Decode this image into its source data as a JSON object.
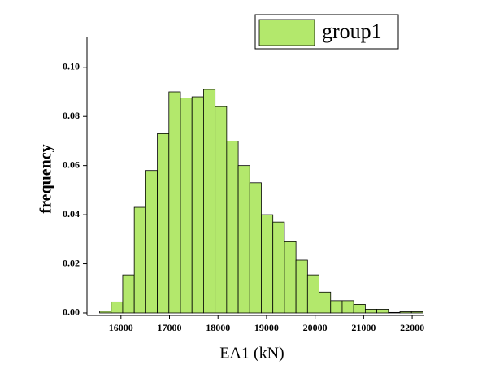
{
  "chart_data": {
    "type": "histogram",
    "x_label": "EA1 (kN)",
    "y_label": "frequency",
    "bins": [
      15560,
      15798,
      16036,
      16274,
      16512,
      16750,
      16988,
      17226,
      17464,
      17702,
      17940,
      18178,
      18416,
      18654,
      18892,
      19130,
      19368,
      19606,
      19844,
      20082,
      20320,
      20558,
      20796,
      21034,
      21272,
      21510,
      21748,
      21986,
      22224
    ],
    "series": [
      {
        "name": "group1",
        "color": "#b3e86c",
        "values": [
          0.0007,
          0.0045,
          0.0155,
          0.043,
          0.058,
          0.073,
          0.09,
          0.0875,
          0.088,
          0.091,
          0.084,
          0.07,
          0.06,
          0.053,
          0.04,
          0.037,
          0.029,
          0.0215,
          0.0155,
          0.0085,
          0.005,
          0.005,
          0.0035,
          0.0015,
          0.0015,
          0.0002,
          0.0005,
          0.0005
        ]
      }
    ],
    "xlim": [
      15300,
      22250
    ],
    "ylim": [
      -0.001,
      0.1125
    ],
    "xticks": [
      16000,
      17000,
      18000,
      19000,
      20000,
      21000,
      22000
    ],
    "yticks": [
      {
        "value": 0,
        "label": "0.00"
      },
      {
        "value": 0.02,
        "label": "0.02"
      },
      {
        "value": 0.04,
        "label": "0.04"
      },
      {
        "value": 0.06,
        "label": "0.06"
      },
      {
        "value": 0.08,
        "label": "0.08"
      },
      {
        "value": 0.1,
        "label": "0.10"
      }
    ],
    "legend": "top-right"
  }
}
